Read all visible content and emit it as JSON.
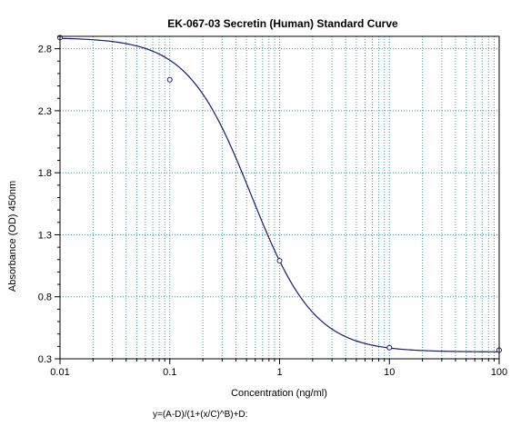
{
  "chart_data": {
    "type": "scatter",
    "title": "EK-067-03 Secretin (Human) Standard Curve",
    "xlabel": "Concentration (ng/ml)",
    "ylabel": "Absorbance (OD) 450nm",
    "x_scale": "log",
    "xlim": [
      0.01,
      100
    ],
    "ylim": [
      0.3,
      2.9
    ],
    "x_ticks": [
      0.01,
      0.1,
      1,
      10,
      100
    ],
    "x_tick_labels": [
      "0.01",
      "0.1",
      "1",
      "10",
      "100"
    ],
    "y_ticks": [
      0.3,
      0.8,
      1.3,
      1.8,
      2.3,
      2.8
    ],
    "y_tick_labels": [
      "0.3",
      "0.8",
      "1.3",
      "1.8",
      "2.3",
      "2.8"
    ],
    "grid": true,
    "series": [
      {
        "kind": "points",
        "x": [
          0.01,
          0.1,
          1,
          10,
          100
        ],
        "y": [
          2.89,
          2.55,
          1.09,
          0.39,
          0.37
        ]
      },
      {
        "kind": "fit-curve",
        "model": "4PL",
        "params": {
          "A": 2.89,
          "B": 1.5,
          "C": 0.55,
          "D": 0.355
        }
      }
    ],
    "formula": "y=(A-D)/(1+(x/C)^B)+D:",
    "colors": {
      "curve": "#1a1a6e",
      "grid": "#3399aa",
      "points": "#1a1a6e",
      "axis": "#000000"
    }
  }
}
